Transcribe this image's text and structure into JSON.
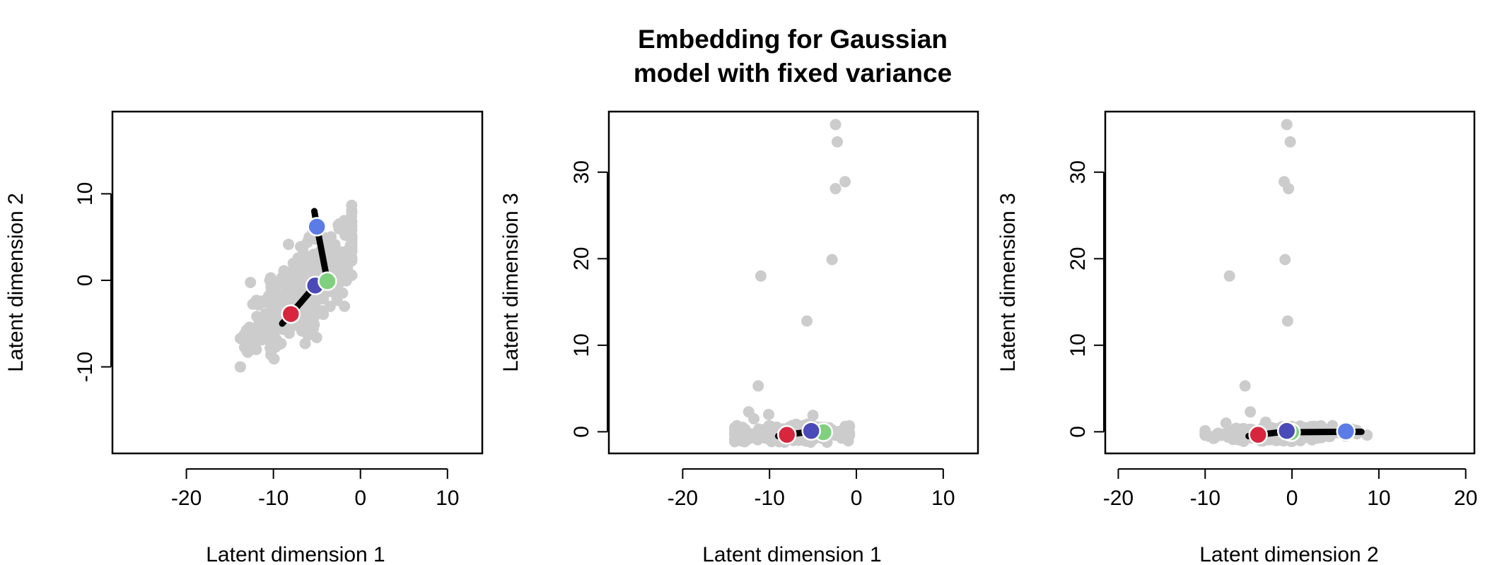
{
  "figure": {
    "title_lines": [
      "Embedding for Gaussian",
      "model with fixed variance"
    ]
  },
  "colors": {
    "background_points": "#cccccc",
    "path": "#000000",
    "marker_red": "#d7263d",
    "marker_blue": "#5b7be6",
    "marker_navy": "#4a4ab8",
    "marker_green": "#7fd07f",
    "marker_outline": "#ffffff"
  },
  "chart_data": [
    {
      "type": "scatter",
      "xlabel": "Latent dimension 1",
      "ylabel": "Latent dimension 2",
      "xlim": [
        -28.5,
        14
      ],
      "ylim": [
        -20,
        19.5
      ],
      "xticks": [
        -20,
        -10,
        0,
        10
      ],
      "yticks": [
        -10,
        0,
        10
      ],
      "outliers": [],
      "cloud": {
        "cx": -6.5,
        "cy": -1.0,
        "sx": 3.2,
        "sy": 3.6,
        "rho": 0.78,
        "n": 450,
        "xmin": -13.8,
        "xmax": -1.0,
        "ymin": -10.0,
        "ymax": 9.5
      },
      "path": [
        [
          -9.0,
          -5.0
        ],
        [
          -8.0,
          -3.9
        ],
        [
          -5.2,
          -0.6
        ],
        [
          -3.8,
          -0.1
        ],
        [
          -5.0,
          6.2
        ],
        [
          -5.3,
          8.0
        ]
      ],
      "markers": [
        {
          "name": "red",
          "x": -8.0,
          "y": -3.9
        },
        {
          "name": "navy",
          "x": -5.2,
          "y": -0.6
        },
        {
          "name": "green",
          "x": -3.8,
          "y": -0.1
        },
        {
          "name": "blue",
          "x": -5.0,
          "y": 6.2
        }
      ]
    },
    {
      "type": "scatter",
      "xlabel": "Latent dimension 1",
      "ylabel": "Latent dimension 3",
      "xlim": [
        -28.5,
        14
      ],
      "ylim": [
        -2.5,
        37
      ],
      "xticks": [
        -20,
        -10,
        0,
        10
      ],
      "yticks": [
        0,
        10,
        20,
        30
      ],
      "outliers": [
        [
          -2.4,
          35.5
        ],
        [
          -2.2,
          33.5
        ],
        [
          -1.3,
          28.9
        ],
        [
          -2.4,
          28.1
        ],
        [
          -2.8,
          19.9
        ],
        [
          -11.0,
          18.0
        ],
        [
          -5.7,
          12.8
        ],
        [
          -11.3,
          5.3
        ],
        [
          -12.4,
          2.3
        ],
        [
          -10.1,
          2.0
        ],
        [
          -11.8,
          1.5
        ],
        [
          -5.0,
          1.9
        ]
      ],
      "cloud": {
        "cx": -7.5,
        "cy": -0.2,
        "sx": 3.3,
        "sy": 0.45,
        "rho": 0.1,
        "n": 320,
        "xmin": -14.0,
        "xmax": -0.8,
        "ymin": -1.2,
        "ymax": 1.3
      },
      "path": [
        [
          -9.0,
          -0.5
        ],
        [
          -8.0,
          -0.35
        ],
        [
          -5.2,
          0.05
        ],
        [
          -3.8,
          -0.05
        ]
      ],
      "markers": [
        {
          "name": "red",
          "x": -8.0,
          "y": -0.35
        },
        {
          "name": "green",
          "x": -3.8,
          "y": -0.05
        },
        {
          "name": "navy",
          "x": -5.2,
          "y": 0.1
        }
      ]
    },
    {
      "type": "scatter",
      "xlabel": "Latent dimension 2",
      "ylabel": "Latent dimension 3",
      "xlim": [
        -21.5,
        21
      ],
      "ylim": [
        -2.5,
        37
      ],
      "xticks": [
        -20,
        -10,
        0,
        10,
        20
      ],
      "yticks": [
        0,
        10,
        20,
        30
      ],
      "outliers": [
        [
          -0.6,
          35.5
        ],
        [
          -0.2,
          33.5
        ],
        [
          -0.9,
          28.9
        ],
        [
          -0.4,
          28.1
        ],
        [
          -0.8,
          19.9
        ],
        [
          -7.2,
          18.0
        ],
        [
          -0.5,
          12.8
        ],
        [
          -5.4,
          5.3
        ],
        [
          -4.8,
          2.3
        ],
        [
          -7.6,
          1.0
        ],
        [
          -8.5,
          -0.3
        ]
      ],
      "cloud": {
        "cx": -1.0,
        "cy": -0.2,
        "sx": 3.8,
        "sy": 0.4,
        "rho": 0.2,
        "n": 340,
        "xmin": -10.0,
        "xmax": 9.5,
        "ymin": -1.1,
        "ymax": 1.3
      },
      "path": [
        [
          -5.0,
          -0.5
        ],
        [
          -3.9,
          -0.35
        ],
        [
          -0.6,
          0.05
        ],
        [
          -0.1,
          -0.05
        ],
        [
          6.2,
          0.0
        ],
        [
          8.0,
          0.0
        ]
      ],
      "markers": [
        {
          "name": "red",
          "x": -3.9,
          "y": -0.35
        },
        {
          "name": "green",
          "x": -0.1,
          "y": -0.05
        },
        {
          "name": "navy",
          "x": -0.6,
          "y": 0.1
        },
        {
          "name": "blue",
          "x": 6.2,
          "y": 0.05
        }
      ]
    }
  ]
}
